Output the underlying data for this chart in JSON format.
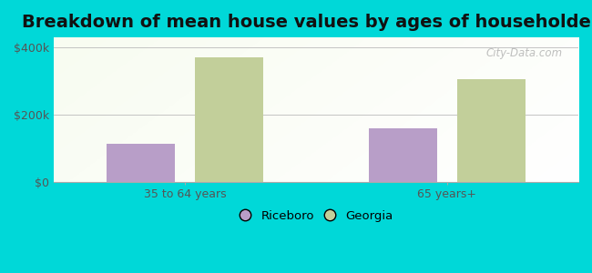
{
  "title": "Breakdown of mean house values by ages of householders",
  "categories": [
    "35 to 64 years",
    "65 years+"
  ],
  "series": [
    {
      "name": "Riceboro",
      "values": [
        112000,
        158000
      ],
      "color": "#b89ec8"
    },
    {
      "name": "Georgia",
      "values": [
        370000,
        305000
      ],
      "color": "#c2cf9a"
    }
  ],
  "ylim": [
    0,
    430000
  ],
  "yticks": [
    0,
    200000,
    400000
  ],
  "ytick_labels": [
    "$0",
    "$200k",
    "$400k"
  ],
  "background_outer": "#00d8d8",
  "bar_width": 0.13,
  "title_fontsize": 14,
  "watermark": "City-Data.com"
}
